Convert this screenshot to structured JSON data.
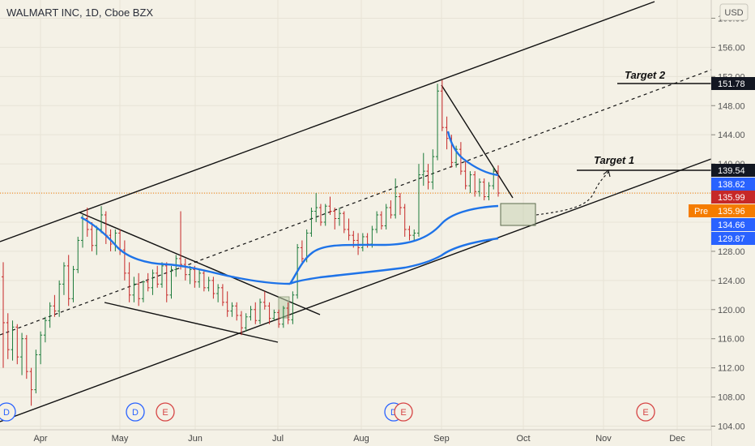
{
  "header": {
    "title": "WALMART INC, 1D, Cboe BZX",
    "currency": "USD"
  },
  "chart_data": {
    "type": "candlestick",
    "title": "WALMART INC, 1D, Cboe BZX",
    "currency": "USD",
    "y_ticks": [
      104.0,
      108.0,
      112.0,
      116.0,
      120.0,
      124.0,
      128.0,
      132.0,
      136.0,
      140.0,
      144.0,
      148.0,
      152.0,
      156.0,
      160.0
    ],
    "y_tick_labels": [
      "104.00",
      "108.00",
      "112.00",
      "116.00",
      "120.00",
      "124.00",
      "128.00",
      "132.00",
      "136.00",
      "140.00",
      "144.00",
      "148.00",
      "152.00",
      "156.00",
      "160.00"
    ],
    "ylim": [
      103.5,
      162.5
    ],
    "x_ticks": [
      "Apr",
      "May",
      "Jun",
      "Jul",
      "Aug",
      "Sep",
      "Oct",
      "Nov",
      "Dec"
    ],
    "price_tags": [
      {
        "label": "151.78",
        "color": "#131722"
      },
      {
        "label": "139.54",
        "color": "#131722"
      },
      {
        "label": "138.62",
        "color": "#2962ff"
      },
      {
        "label": "135.99",
        "color": "#c62828"
      },
      {
        "label": "135.96",
        "color": "#f57c00",
        "prefix": "Pre"
      },
      {
        "label": "134.66",
        "color": "#2962ff"
      },
      {
        "label": "129.87",
        "color": "#2962ff"
      }
    ],
    "annotations": {
      "target1": "Target 1",
      "target2": "Target 2"
    },
    "event_markers": [
      {
        "label": "D",
        "month": "Mar"
      },
      {
        "label": "D",
        "month": "May"
      },
      {
        "label": "E",
        "month": "May"
      },
      {
        "label": "D",
        "month": "Aug"
      },
      {
        "label": "E",
        "month": "Aug"
      },
      {
        "label": "E",
        "month": "Nov"
      }
    ],
    "candles_ohlc": [
      [
        124.5,
        126.5,
        112.0,
        118.2
      ],
      [
        118.2,
        119.5,
        113.2,
        114.5
      ],
      [
        114.5,
        118.5,
        113.0,
        117.6
      ],
      [
        117.6,
        118.0,
        112.5,
        113.5
      ],
      [
        113.5,
        116.8,
        111.0,
        116.0
      ],
      [
        116.0,
        116.5,
        110.5,
        111.5
      ],
      [
        111.5,
        112.0,
        106.8,
        109.0
      ],
      [
        109.0,
        114.5,
        108.5,
        113.8
      ],
      [
        113.8,
        117.0,
        112.5,
        116.5
      ],
      [
        116.5,
        119.0,
        115.5,
        118.5
      ],
      [
        118.5,
        121.0,
        117.5,
        120.5
      ],
      [
        120.5,
        122.0,
        119.0,
        119.8
      ],
      [
        119.8,
        124.0,
        119.0,
        123.5
      ],
      [
        123.5,
        126.5,
        122.0,
        126.0
      ],
      [
        126.0,
        127.5,
        120.5,
        121.5
      ],
      [
        121.5,
        126.0,
        121.0,
        125.5
      ],
      [
        125.5,
        130.0,
        125.0,
        129.5
      ],
      [
        129.5,
        133.0,
        128.5,
        132.5
      ],
      [
        132.5,
        134.0,
        130.0,
        131.0
      ],
      [
        131.0,
        132.0,
        128.0,
        128.8
      ],
      [
        128.8,
        131.5,
        127.5,
        131.0
      ],
      [
        131.0,
        134.2,
        130.5,
        133.0
      ],
      [
        133.0,
        133.5,
        129.0,
        130.2
      ],
      [
        130.2,
        131.0,
        128.0,
        129.0
      ],
      [
        129.0,
        131.0,
        128.0,
        130.5
      ],
      [
        130.5,
        131.0,
        127.5,
        128.2
      ],
      [
        128.2,
        129.5,
        124.0,
        125.0
      ],
      [
        125.0,
        126.5,
        121.0,
        122.0
      ],
      [
        122.0,
        124.5,
        121.0,
        123.5
      ],
      [
        123.5,
        125.0,
        120.5,
        121.5
      ],
      [
        121.5,
        124.0,
        121.0,
        123.8
      ],
      [
        123.8,
        125.0,
        122.5,
        123.0
      ],
      [
        123.0,
        125.5,
        122.0,
        125.0
      ],
      [
        125.0,
        126.0,
        123.0,
        123.5
      ],
      [
        123.5,
        126.5,
        123.0,
        126.0
      ],
      [
        126.0,
        126.5,
        121.0,
        122.0
      ],
      [
        122.0,
        126.0,
        121.5,
        125.5
      ],
      [
        125.5,
        127.5,
        124.5,
        127.0
      ],
      [
        127.0,
        133.5,
        125.5,
        126.2
      ],
      [
        126.2,
        127.0,
        124.0,
        124.8
      ],
      [
        124.8,
        126.0,
        123.5,
        125.5
      ],
      [
        125.5,
        126.0,
        123.0,
        123.8
      ],
      [
        123.8,
        125.5,
        123.0,
        125.0
      ],
      [
        125.0,
        125.5,
        122.5,
        123.0
      ],
      [
        123.0,
        124.5,
        122.5,
        124.0
      ],
      [
        124.0,
        124.5,
        121.5,
        122.2
      ],
      [
        122.2,
        123.5,
        121.0,
        123.0
      ],
      [
        123.0,
        123.5,
        120.5,
        121.0
      ],
      [
        121.0,
        122.5,
        119.0,
        119.8
      ],
      [
        119.8,
        121.0,
        119.0,
        120.5
      ],
      [
        120.5,
        121.0,
        118.5,
        119.2
      ],
      [
        119.2,
        119.8,
        116.5,
        117.5
      ],
      [
        117.5,
        119.5,
        117.0,
        119.0
      ],
      [
        119.0,
        120.5,
        118.5,
        120.0
      ],
      [
        120.0,
        121.0,
        118.0,
        118.5
      ],
      [
        118.5,
        121.5,
        118.0,
        121.0
      ],
      [
        121.0,
        122.5,
        120.0,
        120.5
      ],
      [
        120.5,
        121.0,
        118.0,
        118.8
      ],
      [
        118.8,
        120.0,
        118.5,
        119.6
      ],
      [
        119.6,
        120.0,
        117.5,
        118.0
      ],
      [
        118.0,
        120.5,
        117.5,
        120.2
      ],
      [
        120.2,
        121.0,
        118.0,
        118.6
      ],
      [
        118.6,
        122.5,
        118.0,
        122.0
      ],
      [
        122.0,
        129.0,
        121.5,
        128.5
      ],
      [
        128.5,
        129.5,
        126.5,
        127.0
      ],
      [
        127.0,
        131.0,
        126.5,
        130.5
      ],
      [
        130.5,
        134.0,
        130.0,
        133.5
      ],
      [
        133.5,
        136.0,
        132.0,
        134.0
      ],
      [
        134.0,
        134.5,
        131.5,
        132.0
      ],
      [
        132.0,
        134.5,
        131.5,
        134.2
      ],
      [
        134.2,
        135.5,
        133.0,
        133.5
      ],
      [
        133.5,
        134.0,
        131.0,
        132.5
      ],
      [
        132.5,
        134.0,
        131.5,
        133.2
      ],
      [
        133.2,
        133.5,
        130.5,
        131.0
      ],
      [
        131.0,
        132.5,
        129.5,
        130.2
      ],
      [
        130.2,
        130.8,
        128.5,
        129.5
      ],
      [
        129.5,
        130.5,
        127.5,
        128.5
      ],
      [
        128.5,
        130.5,
        128.0,
        130.0
      ],
      [
        130.0,
        130.5,
        128.5,
        129.0
      ],
      [
        129.0,
        131.5,
        128.5,
        131.0
      ],
      [
        131.0,
        133.5,
        130.5,
        133.0
      ],
      [
        133.0,
        133.5,
        131.0,
        131.5
      ],
      [
        131.5,
        134.5,
        131.0,
        134.0
      ],
      [
        134.0,
        135.0,
        132.5,
        133.0
      ],
      [
        133.0,
        138.0,
        132.5,
        135.5
      ],
      [
        135.5,
        136.0,
        133.0,
        134.0
      ],
      [
        134.0,
        134.5,
        130.0,
        131.0
      ],
      [
        131.0,
        131.5,
        129.5,
        130.2
      ],
      [
        130.2,
        131.0,
        129.5,
        130.5
      ],
      [
        130.5,
        140.0,
        130.0,
        138.5
      ],
      [
        138.5,
        141.5,
        137.0,
        139.0
      ],
      [
        139.0,
        140.0,
        136.5,
        137.5
      ],
      [
        137.5,
        142.0,
        136.5,
        141.0
      ],
      [
        141.0,
        151.0,
        140.5,
        150.0
      ],
      [
        150.0,
        151.5,
        144.5,
        145.0
      ],
      [
        145.0,
        146.5,
        142.0,
        143.5
      ],
      [
        143.5,
        144.0,
        139.5,
        140.2
      ],
      [
        140.2,
        142.5,
        139.5,
        142.0
      ],
      [
        142.0,
        143.0,
        138.5,
        139.0
      ],
      [
        139.0,
        140.5,
        136.5,
        137.0
      ],
      [
        137.0,
        139.0,
        136.0,
        138.5
      ],
      [
        138.5,
        139.0,
        135.5,
        136.2
      ],
      [
        136.2,
        138.0,
        135.5,
        137.5
      ],
      [
        137.5,
        138.0,
        135.0,
        135.5
      ],
      [
        135.5,
        137.5,
        135.0,
        137.0
      ],
      [
        137.0,
        139.5,
        136.5,
        139.0
      ],
      [
        139.0,
        139.8,
        135.5,
        136.0
      ]
    ]
  }
}
